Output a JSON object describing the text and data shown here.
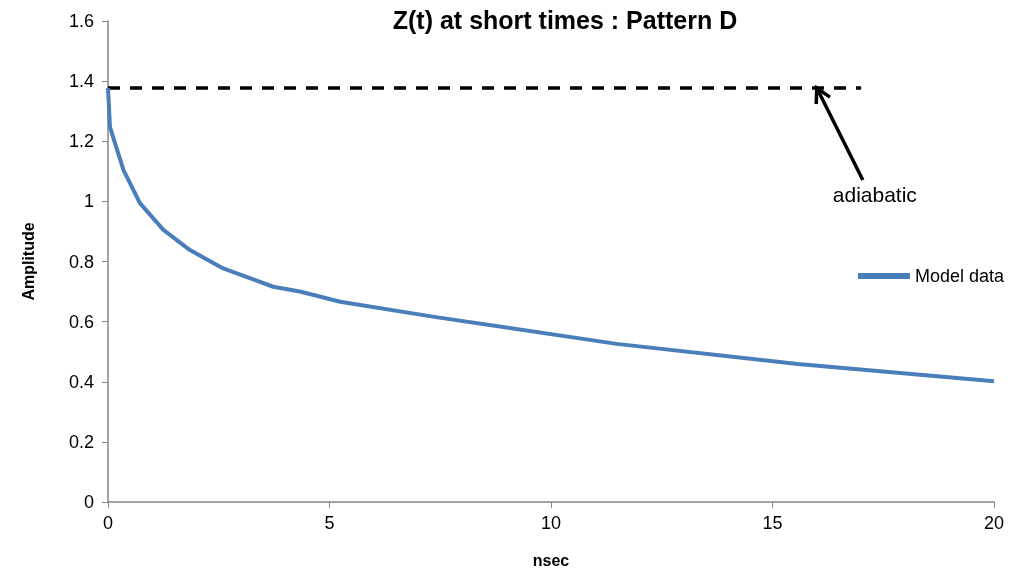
{
  "chart_data": {
    "type": "line",
    "title": "Z(t) at short times : Pattern D",
    "xlabel": "nsec",
    "ylabel": "Amplitude",
    "xlim": [
      0,
      20
    ],
    "xticks": [
      0,
      5,
      10,
      15,
      20
    ],
    "ylim": [
      0,
      1.6
    ],
    "yticks": [
      0,
      0.2,
      0.4,
      0.6,
      0.8,
      1,
      1.2,
      1.4,
      1.6
    ],
    "grid": false,
    "legend": "right",
    "marker": "none",
    "series": [
      {
        "name": "Model data",
        "color": "#4a7ebb",
        "line_style": "solid",
        "x": [
          0,
          0.045,
          0.35,
          0.72,
          1.25,
          1.85,
          2.6,
          3.73,
          4.33,
          5.24,
          7.4,
          11.48,
          15.57,
          20
        ],
        "values": [
          1.377,
          1.247,
          1.104,
          0.994,
          0.905,
          0.838,
          0.777,
          0.716,
          0.7,
          0.666,
          0.615,
          0.526,
          0.459,
          0.402
        ]
      },
      {
        "color": "#000000",
        "line_style": "dashed",
        "x": [
          0,
          17
        ],
        "values": [
          1.377,
          1.377
        ]
      }
    ],
    "annotations": [
      {
        "text": "adiabatic",
        "x": 16,
        "y": 1.377
      }
    ]
  }
}
